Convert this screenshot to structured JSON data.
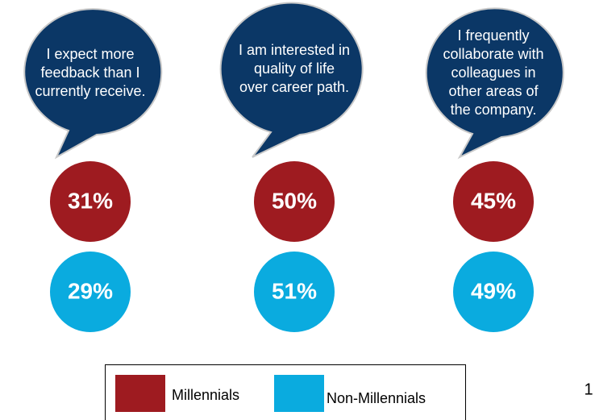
{
  "chart_data": {
    "type": "circle",
    "categories": [
      "I expect more feedback than I currently receive.",
      "I am interested in quality of life over career path.",
      "I frequently collaborate with colleagues in other areas of the company."
    ],
    "series": [
      {
        "name": "Millennials",
        "color": "#9e1b20",
        "values": [
          31,
          50,
          45
        ],
        "value_labels": [
          "31%",
          "50%",
          "45%"
        ]
      },
      {
        "name": "Non-Millennials",
        "color": "#0aabdf",
        "values": [
          29,
          51,
          49
        ],
        "value_labels": [
          "29%",
          "51%",
          "49%"
        ]
      }
    ]
  },
  "page_number": "1"
}
